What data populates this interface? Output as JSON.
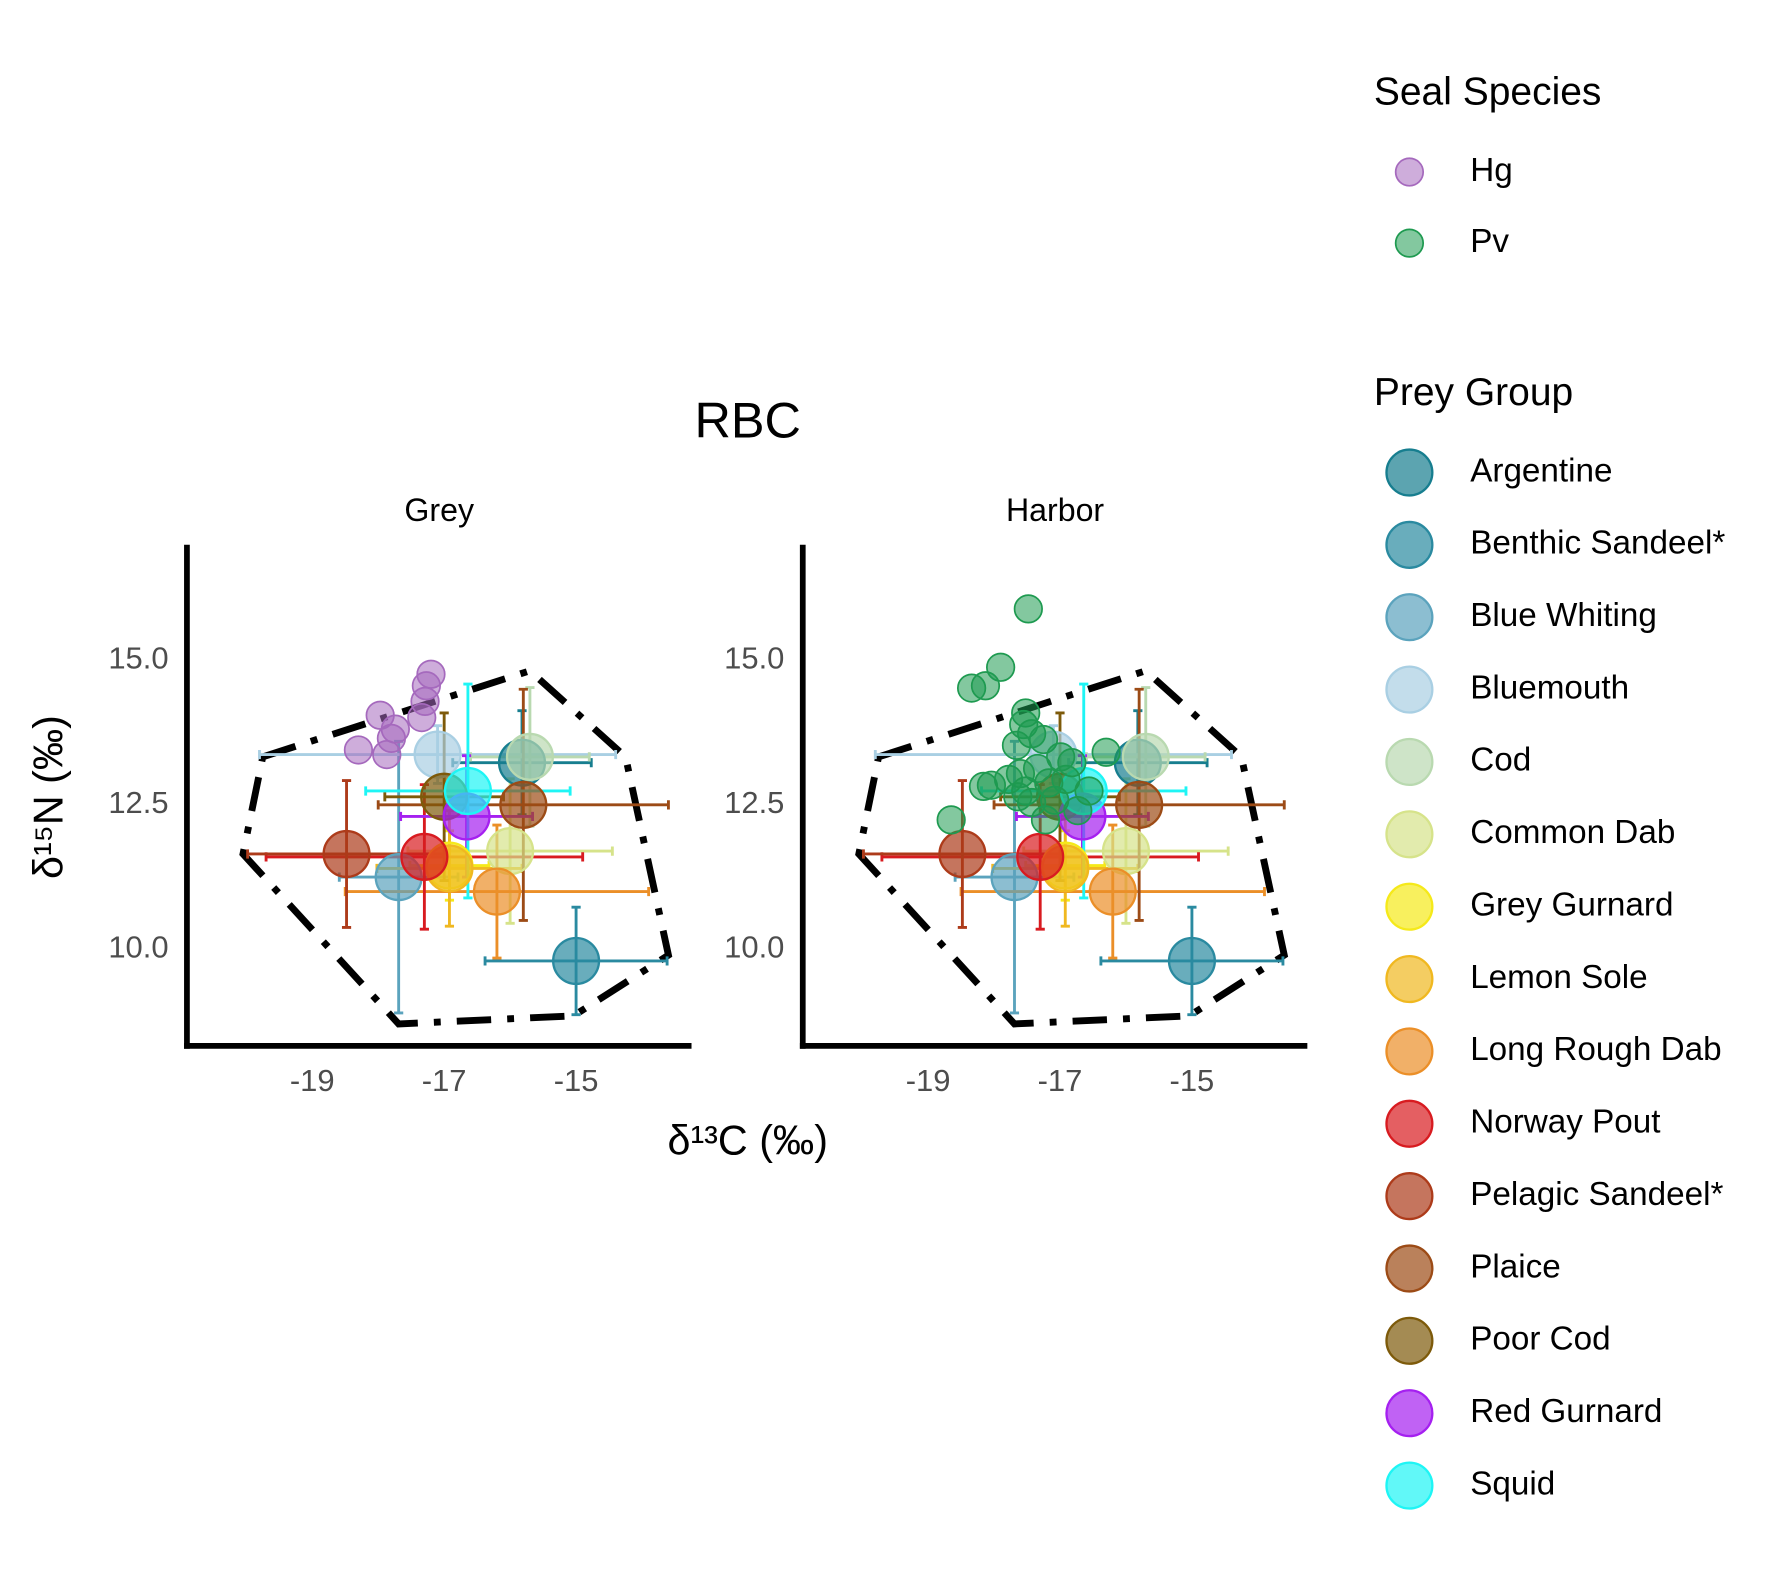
{
  "chart_data": {
    "type": "scatter",
    "title": "RBC",
    "x_label": "δ¹³C (‰)",
    "y_label": "δ¹⁵N (‰)",
    "xlim": [
      -20.9,
      -13.25
    ],
    "ylim": [
      8.33,
      17.0
    ],
    "xticks": [
      -19,
      -17,
      -15
    ],
    "yticks": [
      {
        "value": 10,
        "label": "10.0"
      },
      12.5,
      {
        "value": 15,
        "label": "15.0"
      }
    ],
    "seal_legend_title": "Seal Species",
    "prey_legend_title": "Prey Group",
    "hull": {
      "x": [
        -19.75,
        -15.7,
        -14.25,
        -13.6,
        -15.04,
        -17.69,
        -20.05
      ],
      "y": [
        13.33,
        14.82,
        13.33,
        9.9,
        8.85,
        8.71,
        11.65
      ]
    },
    "panels": [
      {
        "name": "Grey",
        "series": [
          {
            "name": "Hg",
            "color": "#a569bd",
            "x": [
              -17.2,
              -17.27,
              -17.29,
              -17.34,
              -17.97,
              -17.74,
              -17.8,
              -18.3,
              -17.87
            ],
            "y": [
              14.76,
              14.56,
              14.29,
              14.01,
              14.05,
              13.81,
              13.65,
              13.45,
              13.37
            ]
          }
        ]
      },
      {
        "name": "Harbor",
        "series": [
          {
            "name": "Pv",
            "color": "#1e9a50",
            "x": [
              -17.48,
              -17.9,
              -18.34,
              -18.13,
              -17.52,
              -17.55,
              -17.43,
              -17.25,
              -17.66,
              -16.3,
              -16.99,
              -16.82,
              -17.34,
              -17.6,
              -17.78,
              -18.04,
              -17.17,
              -16.91,
              -17.52,
              -17.64,
              -17.43,
              -17.08,
              -16.73,
              -17.22,
              -18.65,
              -16.56,
              -18.16
            ],
            "y": [
              15.89,
              14.88,
              14.52,
              14.56,
              14.09,
              13.89,
              13.73,
              13.63,
              13.53,
              13.41,
              13.33,
              13.23,
              13.13,
              13.04,
              12.94,
              12.84,
              12.88,
              12.94,
              12.74,
              12.64,
              12.54,
              12.58,
              12.4,
              12.24,
              12.24,
              12.74,
              12.82
            ]
          }
        ]
      }
    ],
    "prey": [
      {
        "name": "Argentine",
        "color": "#177e8f",
        "x": -15.82,
        "y": 13.23,
        "x_err": 1.05,
        "y_err": 0.9
      },
      {
        "name": "Benthic Sandeel*",
        "color": "#2a8aa0",
        "x": -15.0,
        "y": 9.8,
        "x_err": 1.38,
        "y_err": 0.93
      },
      {
        "name": "Blue Whiting",
        "color": "#5ba3bd",
        "x": -17.69,
        "y": 11.25,
        "x_err": 0.9,
        "y_err": 2.35
      },
      {
        "name": "Bluemouth",
        "color": "#a9cfe3",
        "x": -17.1,
        "y": 13.37,
        "x_err": 2.7,
        "y_err": 0.5
      },
      {
        "name": "Cod",
        "color": "#b9d9b0",
        "x": -15.7,
        "y": 13.33,
        "x_err": 0.9,
        "y_err": 1.2
      },
      {
        "name": "Common Dab",
        "color": "#d6e38a",
        "x": -16.0,
        "y": 11.7,
        "x_err": 1.55,
        "y_err": 1.25
      },
      {
        "name": "Grey Gurnard",
        "color": "#f5e91a",
        "x": -16.92,
        "y": 11.45,
        "x_err": 0.6,
        "y_err": 0.6
      },
      {
        "name": "Lemon Sole",
        "color": "#f0b820",
        "x": -16.92,
        "y": 11.4,
        "x_err": 1.1,
        "y_err": 1.0
      },
      {
        "name": "Long Rough Dab",
        "color": "#eb8f28",
        "x": -16.2,
        "y": 11.0,
        "x_err": 2.3,
        "y_err": 1.15
      },
      {
        "name": "Norway Pout",
        "color": "#d81b20",
        "x": -17.3,
        "y": 11.6,
        "x_err": 2.4,
        "y_err": 1.25
      },
      {
        "name": "Pelagic Sandeel*",
        "color": "#ad3b1a",
        "x": -18.48,
        "y": 11.65,
        "x_err": 1.5,
        "y_err": 1.27
      },
      {
        "name": "Plaice",
        "color": "#9c4b16",
        "x": -15.8,
        "y": 12.5,
        "x_err": 2.2,
        "y_err": 2.0
      },
      {
        "name": "Poor Cod",
        "color": "#7d5a0a",
        "x": -17.0,
        "y": 12.64,
        "x_err": 0.9,
        "y_err": 1.45
      },
      {
        "name": "Red Gurnard",
        "color": "#a520f0",
        "x": -16.66,
        "y": 12.3,
        "x_err": 1.0,
        "y_err": 1.05
      },
      {
        "name": "Squid",
        "color": "#1ef5f5",
        "x": -16.64,
        "y": 12.74,
        "x_err": 1.55,
        "y_err": 1.85
      }
    ]
  }
}
